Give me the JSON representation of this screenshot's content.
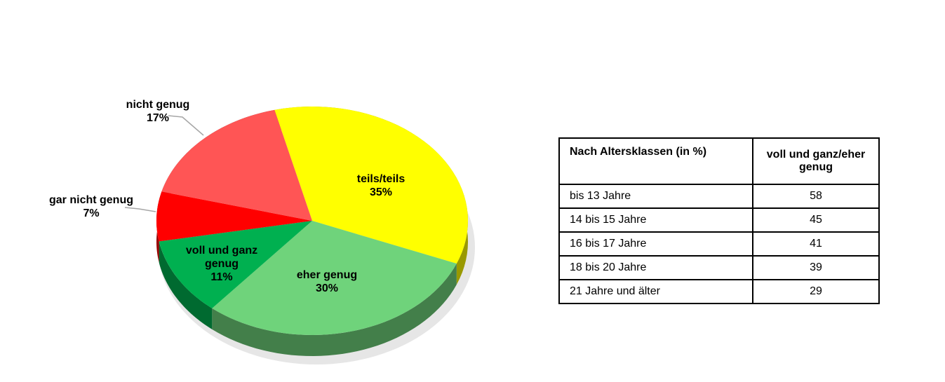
{
  "chart_data": {
    "type": "pie",
    "categories": [
      "teils/teils",
      "eher genug",
      "voll und ganz genug",
      "gar nicht genug",
      "nicht genug"
    ],
    "values": [
      35,
      30,
      11,
      7,
      17
    ],
    "value_labels": [
      "35%",
      "30%",
      "11%",
      "7%",
      "17%"
    ],
    "colors": [
      "#ffff00",
      "#6fd37b",
      "#00b050",
      "#ff0000",
      "#ff5555"
    ]
  },
  "table": {
    "header": [
      "Nach Altersklassen (in %)",
      "voll und ganz/eher genug"
    ],
    "rows": [
      [
        "bis 13 Jahre",
        "58"
      ],
      [
        "14 bis 15 Jahre",
        "45"
      ],
      [
        "16 bis 17 Jahre",
        "41"
      ],
      [
        "18 bis 20 Jahre",
        "39"
      ],
      [
        "21 Jahre und älter",
        "29"
      ]
    ]
  }
}
